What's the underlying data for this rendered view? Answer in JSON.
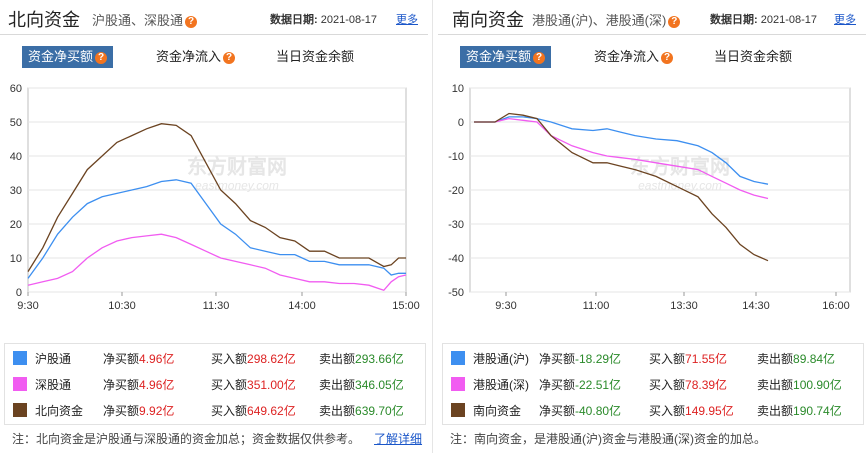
{
  "north": {
    "title": "北向资金",
    "subtitle": "沪股通、深股通",
    "date_label": "数据日期:",
    "date": "2021-08-17",
    "more": "更多",
    "tabs": [
      "资金净买额",
      "资金净流入",
      "当日资金余额"
    ],
    "legend": [
      {
        "name": "沪股通",
        "net_label": "净买额",
        "net": "4.96亿",
        "buy_label": "买入额",
        "buy": "298.62亿",
        "sell_label": "卖出额",
        "sell": "293.66亿"
      },
      {
        "name": "深股通",
        "net_label": "净买额",
        "net": "4.96亿",
        "buy_label": "买入额",
        "buy": "351.00亿",
        "sell_label": "卖出额",
        "sell": "346.05亿"
      },
      {
        "name": "北向资金",
        "net_label": "净买额",
        "net": "9.92亿",
        "buy_label": "买入额",
        "buy": "649.62亿",
        "sell_label": "卖出额",
        "sell": "639.70亿"
      }
    ],
    "note": "注：北向资金是沪股通与深股通的资金加总；资金数据仅供参考。",
    "note_link": "了解详细"
  },
  "south": {
    "title": "南向资金",
    "subtitle": "港股通(沪)、港股通(深)",
    "date_label": "数据日期:",
    "date": "2021-08-17",
    "more": "更多",
    "tabs": [
      "资金净买额",
      "资金净流入",
      "当日资金余额"
    ],
    "legend": [
      {
        "name": "港股通(沪)",
        "net_label": "净买额",
        "net": "-18.29亿",
        "buy_label": "买入额",
        "buy": "71.55亿",
        "sell_label": "卖出额",
        "sell": "89.84亿"
      },
      {
        "name": "港股通(深)",
        "net_label": "净买额",
        "net": "-22.51亿",
        "buy_label": "买入额",
        "buy": "78.39亿",
        "sell_label": "卖出额",
        "sell": "100.90亿"
      },
      {
        "name": "南向资金",
        "net_label": "净买额",
        "net": "-40.80亿",
        "buy_label": "买入额",
        "buy": "149.95亿",
        "sell_label": "卖出额",
        "sell": "190.74亿"
      }
    ],
    "note": "注：南向资金，是港股通(沪)资金与港股通(深)资金的加总。"
  },
  "watermark": {
    "cn": "东方财富网",
    "en": "eastmoney.com"
  },
  "colors": {
    "blue": "#3d8ff0",
    "pink": "#f15cf1",
    "brown": "#6b4321",
    "tab_active": "#3b6ea6",
    "green": "#2a8a2a",
    "red": "#d22222"
  },
  "chart_data": [
    {
      "type": "line",
      "x_ticks": [
        "9:30",
        "10:30",
        "11:30",
        "14:00",
        "15:00"
      ],
      "y_ticks": [
        0,
        10,
        20,
        30,
        40,
        50,
        60
      ],
      "ylim": [
        0,
        60
      ],
      "series": [
        {
          "name": "沪股通",
          "color": "#3d8ff0",
          "values": [
            [
              0,
              4
            ],
            [
              10,
              10
            ],
            [
              20,
              17
            ],
            [
              30,
              22
            ],
            [
              40,
              26
            ],
            [
              50,
              28
            ],
            [
              60,
              29
            ],
            [
              70,
              30
            ],
            [
              80,
              31
            ],
            [
              90,
              32.5
            ],
            [
              100,
              33
            ],
            [
              110,
              32
            ],
            [
              120,
              26
            ],
            [
              130,
              20
            ],
            [
              140,
              17
            ],
            [
              150,
              13
            ],
            [
              160,
              12
            ],
            [
              170,
              11
            ],
            [
              180,
              11
            ],
            [
              190,
              9
            ],
            [
              200,
              9
            ],
            [
              210,
              8
            ],
            [
              220,
              8
            ],
            [
              230,
              8
            ],
            [
              240,
              7
            ],
            [
              245,
              5
            ],
            [
              250,
              5.5
            ],
            [
              255,
              5.5
            ]
          ]
        },
        {
          "name": "深股通",
          "color": "#f15cf1",
          "values": [
            [
              0,
              2
            ],
            [
              10,
              3
            ],
            [
              20,
              4
            ],
            [
              30,
              6
            ],
            [
              40,
              10
            ],
            [
              50,
              13
            ],
            [
              60,
              15
            ],
            [
              70,
              16
            ],
            [
              80,
              16.5
            ],
            [
              90,
              17
            ],
            [
              100,
              16
            ],
            [
              110,
              14
            ],
            [
              120,
              12
            ],
            [
              130,
              10
            ],
            [
              140,
              9
            ],
            [
              150,
              8
            ],
            [
              160,
              7
            ],
            [
              170,
              5
            ],
            [
              180,
              4
            ],
            [
              190,
              3
            ],
            [
              200,
              3
            ],
            [
              210,
              2.5
            ],
            [
              220,
              2.5
            ],
            [
              230,
              2
            ],
            [
              240,
              0.5
            ],
            [
              245,
              3
            ],
            [
              250,
              4.5
            ],
            [
              255,
              5
            ]
          ]
        },
        {
          "name": "北向资金",
          "color": "#6b4321",
          "values": [
            [
              0,
              6
            ],
            [
              10,
              13
            ],
            [
              20,
              22
            ],
            [
              30,
              29
            ],
            [
              40,
              36
            ],
            [
              50,
              40
            ],
            [
              60,
              44
            ],
            [
              70,
              46
            ],
            [
              80,
              48
            ],
            [
              90,
              49.5
            ],
            [
              100,
              49
            ],
            [
              110,
              46
            ],
            [
              120,
              38
            ],
            [
              130,
              30
            ],
            [
              140,
              26
            ],
            [
              150,
              21
            ],
            [
              160,
              19
            ],
            [
              170,
              16
            ],
            [
              180,
              15
            ],
            [
              190,
              12
            ],
            [
              200,
              12
            ],
            [
              210,
              10
            ],
            [
              220,
              10
            ],
            [
              230,
              10
            ],
            [
              240,
              7.5
            ],
            [
              245,
              8
            ],
            [
              250,
              10
            ],
            [
              255,
              10
            ]
          ]
        }
      ]
    },
    {
      "type": "line",
      "x_ticks": [
        "9:30",
        "11:00",
        "13:30",
        "14:30",
        "16:00"
      ],
      "y_ticks": [
        10,
        0,
        -10,
        -20,
        -30,
        -40,
        -50
      ],
      "ylim": [
        -50,
        10
      ],
      "series": [
        {
          "name": "港股通(沪)",
          "color": "#3d8ff0",
          "values": [
            [
              0,
              0
            ],
            [
              15,
              0
            ],
            [
              25,
              1.5
            ],
            [
              35,
              1.5
            ],
            [
              45,
              1
            ],
            [
              55,
              0
            ],
            [
              70,
              -2
            ],
            [
              85,
              -2.5
            ],
            [
              95,
              -2
            ],
            [
              105,
              -3
            ],
            [
              115,
              -4
            ],
            [
              130,
              -5
            ],
            [
              145,
              -5.5
            ],
            [
              160,
              -7
            ],
            [
              170,
              -9
            ],
            [
              180,
              -12
            ],
            [
              190,
              -16
            ],
            [
              200,
              -17.5
            ],
            [
              210,
              -18.3
            ]
          ]
        },
        {
          "name": "港股通(深)",
          "color": "#f15cf1",
          "values": [
            [
              0,
              0
            ],
            [
              15,
              0
            ],
            [
              25,
              1
            ],
            [
              35,
              0.5
            ],
            [
              45,
              0
            ],
            [
              55,
              -4
            ],
            [
              70,
              -7
            ],
            [
              85,
              -9
            ],
            [
              95,
              -10
            ],
            [
              105,
              -10.5
            ],
            [
              115,
              -11
            ],
            [
              130,
              -12
            ],
            [
              145,
              -13
            ],
            [
              160,
              -14
            ],
            [
              170,
              -16
            ],
            [
              180,
              -18
            ],
            [
              190,
              -20
            ],
            [
              200,
              -21.5
            ],
            [
              210,
              -22.5
            ]
          ]
        },
        {
          "name": "南向资金",
          "color": "#6b4321",
          "values": [
            [
              0,
              0
            ],
            [
              15,
              0
            ],
            [
              25,
              2.5
            ],
            [
              35,
              2
            ],
            [
              45,
              1
            ],
            [
              55,
              -4
            ],
            [
              70,
              -9
            ],
            [
              85,
              -12
            ],
            [
              95,
              -12
            ],
            [
              105,
              -13
            ],
            [
              115,
              -14
            ],
            [
              130,
              -16
            ],
            [
              145,
              -19
            ],
            [
              160,
              -22
            ],
            [
              170,
              -27
            ],
            [
              180,
              -31
            ],
            [
              190,
              -36
            ],
            [
              200,
              -39
            ],
            [
              210,
              -40.8
            ]
          ]
        }
      ]
    }
  ]
}
